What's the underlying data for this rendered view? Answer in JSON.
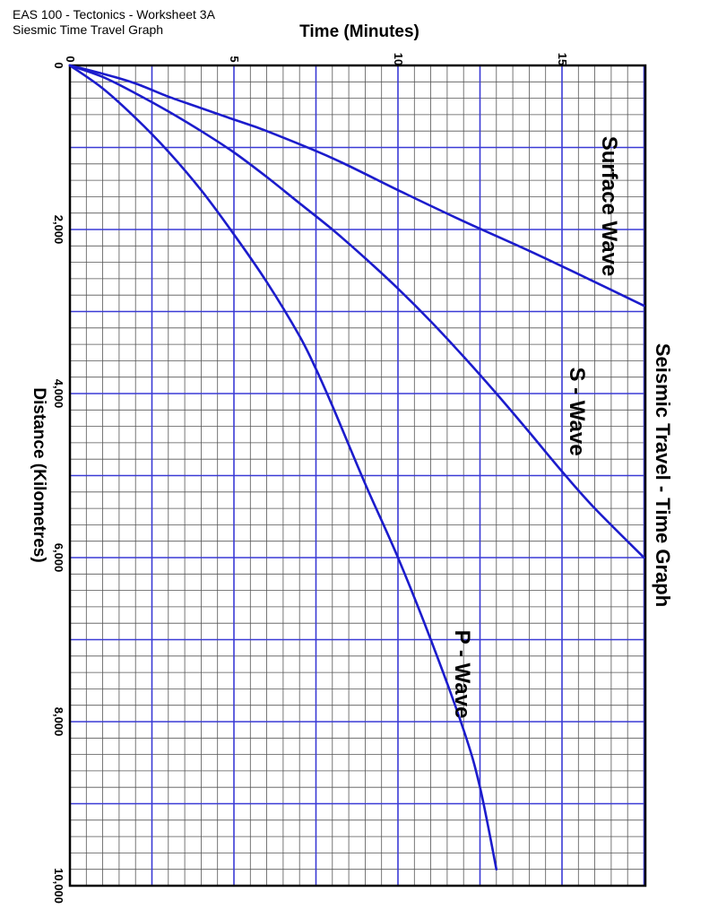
{
  "header": {
    "line1": "EAS 100 - Tectonics - Worksheet 3A",
    "line2": "Siesmic Time Travel Graph"
  },
  "chart_data": {
    "type": "line",
    "title": "Seismic Travel - Time Graph",
    "xlabel": "Time (Minutes)",
    "ylabel": "Distance (Kilometres)",
    "x_ticks": [
      "0",
      "5",
      "10",
      "15"
    ],
    "y_ticks": [
      "0",
      "2,000",
      "4,000",
      "6,000",
      "8,000",
      "10,000"
    ],
    "xlim": [
      0,
      17.5
    ],
    "ylim": [
      0,
      10000
    ],
    "grid": true,
    "colors": {
      "curve": "#1c1ccc",
      "major_grid": "#3a3ad6",
      "minor_grid": "#555555"
    },
    "series": [
      {
        "name": "Surface Wave",
        "x": [
          0,
          1,
          2,
          3,
          4,
          5,
          6,
          8,
          10,
          12,
          14,
          16,
          17.5
        ],
        "y": [
          0,
          100,
          220,
          380,
          520,
          660,
          800,
          1130,
          1520,
          1900,
          2260,
          2640,
          2930
        ]
      },
      {
        "name": "S - Wave",
        "x": [
          0,
          1,
          2,
          3,
          4,
          5,
          6,
          7,
          8,
          9,
          10,
          11,
          12,
          13,
          14,
          15,
          16,
          17.5
        ],
        "y": [
          0,
          140,
          340,
          560,
          800,
          1060,
          1360,
          1680,
          2000,
          2350,
          2720,
          3120,
          3550,
          4000,
          4470,
          4950,
          5400,
          6000
        ]
      },
      {
        "name": "P - Wave",
        "x": [
          0,
          1,
          2,
          3,
          4,
          5,
          6,
          7,
          7.5,
          8,
          9,
          10,
          11,
          12,
          12.5,
          13
        ],
        "y": [
          0,
          280,
          640,
          1050,
          1520,
          2060,
          2640,
          3300,
          3700,
          4150,
          5100,
          6000,
          7000,
          8100,
          8800,
          9800
        ]
      }
    ]
  }
}
